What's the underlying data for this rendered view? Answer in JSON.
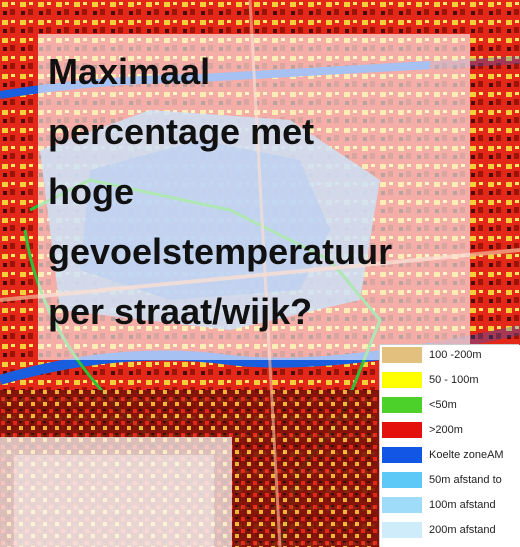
{
  "title_lines": [
    "Maximaal",
    "percentage met",
    "hoge",
    "gevoelstemperatuur",
    "per straat/wijk?"
  ],
  "legend": [
    {
      "label": "100 -200m",
      "color": "#e3c07d"
    },
    {
      "label": "50 - 100m",
      "color": "#ffff00"
    },
    {
      "label": "<50m",
      "color": "#4cd12a"
    },
    {
      "label": ">200m",
      "color": "#e3100e"
    },
    {
      "label": "Koelte zoneAM",
      "color": "#1256e6"
    },
    {
      "label": "50m afstand to",
      "color": "#5ec8f7"
    },
    {
      "label": "100m afstand",
      "color": "#9fdcf9"
    },
    {
      "label": "200m afstand",
      "color": "#cfecfb"
    }
  ]
}
